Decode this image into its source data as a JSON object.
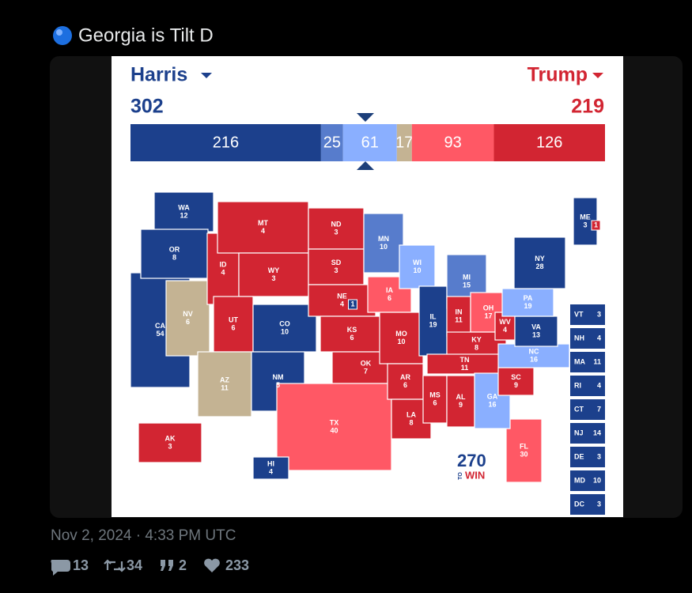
{
  "tweet": {
    "text": "Georgia is Tilt D",
    "timestamp": "Nov 2, 2024 · 4:33 PM UTC",
    "stats": {
      "replies": 13,
      "retweets": 34,
      "quotes": 2,
      "likes": 233
    }
  },
  "map": {
    "harris": {
      "name": "Harris",
      "total": 302,
      "color": "#1c408c"
    },
    "trump": {
      "name": "Trump",
      "total": 219,
      "color": "#d22532"
    },
    "bar": [
      {
        "value": 216,
        "color": "#1c408c"
      },
      {
        "value": 25,
        "color": "#577ccc"
      },
      {
        "value": 61,
        "color": "#8aafff"
      },
      {
        "value": 17,
        "color": "#c4b393"
      },
      {
        "value": 93,
        "color": "#ff5865"
      },
      {
        "value": 126,
        "color": "#d22532"
      }
    ],
    "states": [
      {
        "abbr": "CA",
        "ev": 54,
        "color": "#1c408c"
      },
      {
        "abbr": "WA",
        "ev": 12,
        "color": "#1c408c"
      },
      {
        "abbr": "OR",
        "ev": 8,
        "color": "#1c408c"
      },
      {
        "abbr": "NV",
        "ev": 6,
        "color": "#c4b393"
      },
      {
        "abbr": "ID",
        "ev": 4,
        "color": "#d22532"
      },
      {
        "abbr": "MT",
        "ev": 4,
        "color": "#d22532"
      },
      {
        "abbr": "WY",
        "ev": 3,
        "color": "#d22532"
      },
      {
        "abbr": "UT",
        "ev": 6,
        "color": "#d22532"
      },
      {
        "abbr": "AZ",
        "ev": 11,
        "color": "#c4b393"
      },
      {
        "abbr": "CO",
        "ev": 10,
        "color": "#1c408c"
      },
      {
        "abbr": "NM",
        "ev": 5,
        "color": "#1c408c"
      },
      {
        "abbr": "ND",
        "ev": 3,
        "color": "#d22532"
      },
      {
        "abbr": "SD",
        "ev": 3,
        "color": "#d22532"
      },
      {
        "abbr": "NE",
        "ev": 4,
        "color": "#d22532"
      },
      {
        "abbr": "KS",
        "ev": 6,
        "color": "#d22532"
      },
      {
        "abbr": "OK",
        "ev": 7,
        "color": "#d22532"
      },
      {
        "abbr": "TX",
        "ev": 40,
        "color": "#ff5865"
      },
      {
        "abbr": "MN",
        "ev": 10,
        "color": "#577ccc"
      },
      {
        "abbr": "IA",
        "ev": 6,
        "color": "#ff5865"
      },
      {
        "abbr": "MO",
        "ev": 10,
        "color": "#d22532"
      },
      {
        "abbr": "AR",
        "ev": 6,
        "color": "#d22532"
      },
      {
        "abbr": "LA",
        "ev": 8,
        "color": "#d22532"
      },
      {
        "abbr": "WI",
        "ev": 10,
        "color": "#8aafff"
      },
      {
        "abbr": "IL",
        "ev": 19,
        "color": "#1c408c"
      },
      {
        "abbr": "MI",
        "ev": 15,
        "color": "#577ccc"
      },
      {
        "abbr": "IN",
        "ev": 11,
        "color": "#d22532"
      },
      {
        "abbr": "OH",
        "ev": 17,
        "color": "#ff5865"
      },
      {
        "abbr": "KY",
        "ev": 8,
        "color": "#d22532"
      },
      {
        "abbr": "TN",
        "ev": 11,
        "color": "#d22532"
      },
      {
        "abbr": "MS",
        "ev": 6,
        "color": "#d22532"
      },
      {
        "abbr": "AL",
        "ev": 9,
        "color": "#d22532"
      },
      {
        "abbr": "FL",
        "ev": 30,
        "color": "#ff5865"
      },
      {
        "abbr": "GA",
        "ev": 16,
        "color": "#8aafff"
      },
      {
        "abbr": "SC",
        "ev": 9,
        "color": "#d22532"
      },
      {
        "abbr": "NC",
        "ev": 16,
        "color": "#8aafff"
      },
      {
        "abbr": "WV",
        "ev": 4,
        "color": "#d22532"
      },
      {
        "abbr": "VA",
        "ev": 13,
        "color": "#1c408c"
      },
      {
        "abbr": "PA",
        "ev": 19,
        "color": "#8aafff"
      },
      {
        "abbr": "NY",
        "ev": 28,
        "color": "#1c408c"
      },
      {
        "abbr": "ME",
        "ev": 3,
        "color": "#1c408c"
      },
      {
        "abbr": "AK",
        "ev": 3,
        "color": "#d22532"
      },
      {
        "abbr": "HI",
        "ev": 4,
        "color": "#1c408c"
      }
    ],
    "districts": [
      {
        "state": 13,
        "ev": 1,
        "color": "#1c408c"
      },
      {
        "state": 39,
        "ev": 1,
        "color": "#d22532"
      }
    ],
    "small_states": [
      {
        "abbr": "VT",
        "ev": 3
      },
      {
        "abbr": "NH",
        "ev": 4
      },
      {
        "abbr": "MA",
        "ev": 11
      },
      {
        "abbr": "RI",
        "ev": 4
      },
      {
        "abbr": "CT",
        "ev": 7
      },
      {
        "abbr": "NJ",
        "ev": 14
      },
      {
        "abbr": "DE",
        "ev": 3
      },
      {
        "abbr": "MD",
        "ev": 10
      },
      {
        "abbr": "DC",
        "ev": 3
      }
    ],
    "small_states_color": "#1c408c",
    "logo": {
      "number": "270",
      "to": "TO",
      "win": "WIN"
    }
  }
}
